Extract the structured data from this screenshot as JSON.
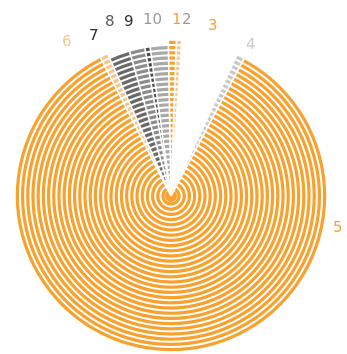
{
  "colors": {
    "orange": "#F7A12E",
    "light_orange": "#F7C48A",
    "dark_gray": "#4A4A4A",
    "gray": "#8C8C8C",
    "light_gray": "#C9C9C9",
    "white": "#FFFFFF"
  },
  "labels": {
    "six": "6",
    "seven": "7",
    "eight": "8",
    "nine": "9",
    "ten": "10",
    "one": "1",
    "two": "2",
    "three": "3",
    "four": "4",
    "five": "5"
  }
}
